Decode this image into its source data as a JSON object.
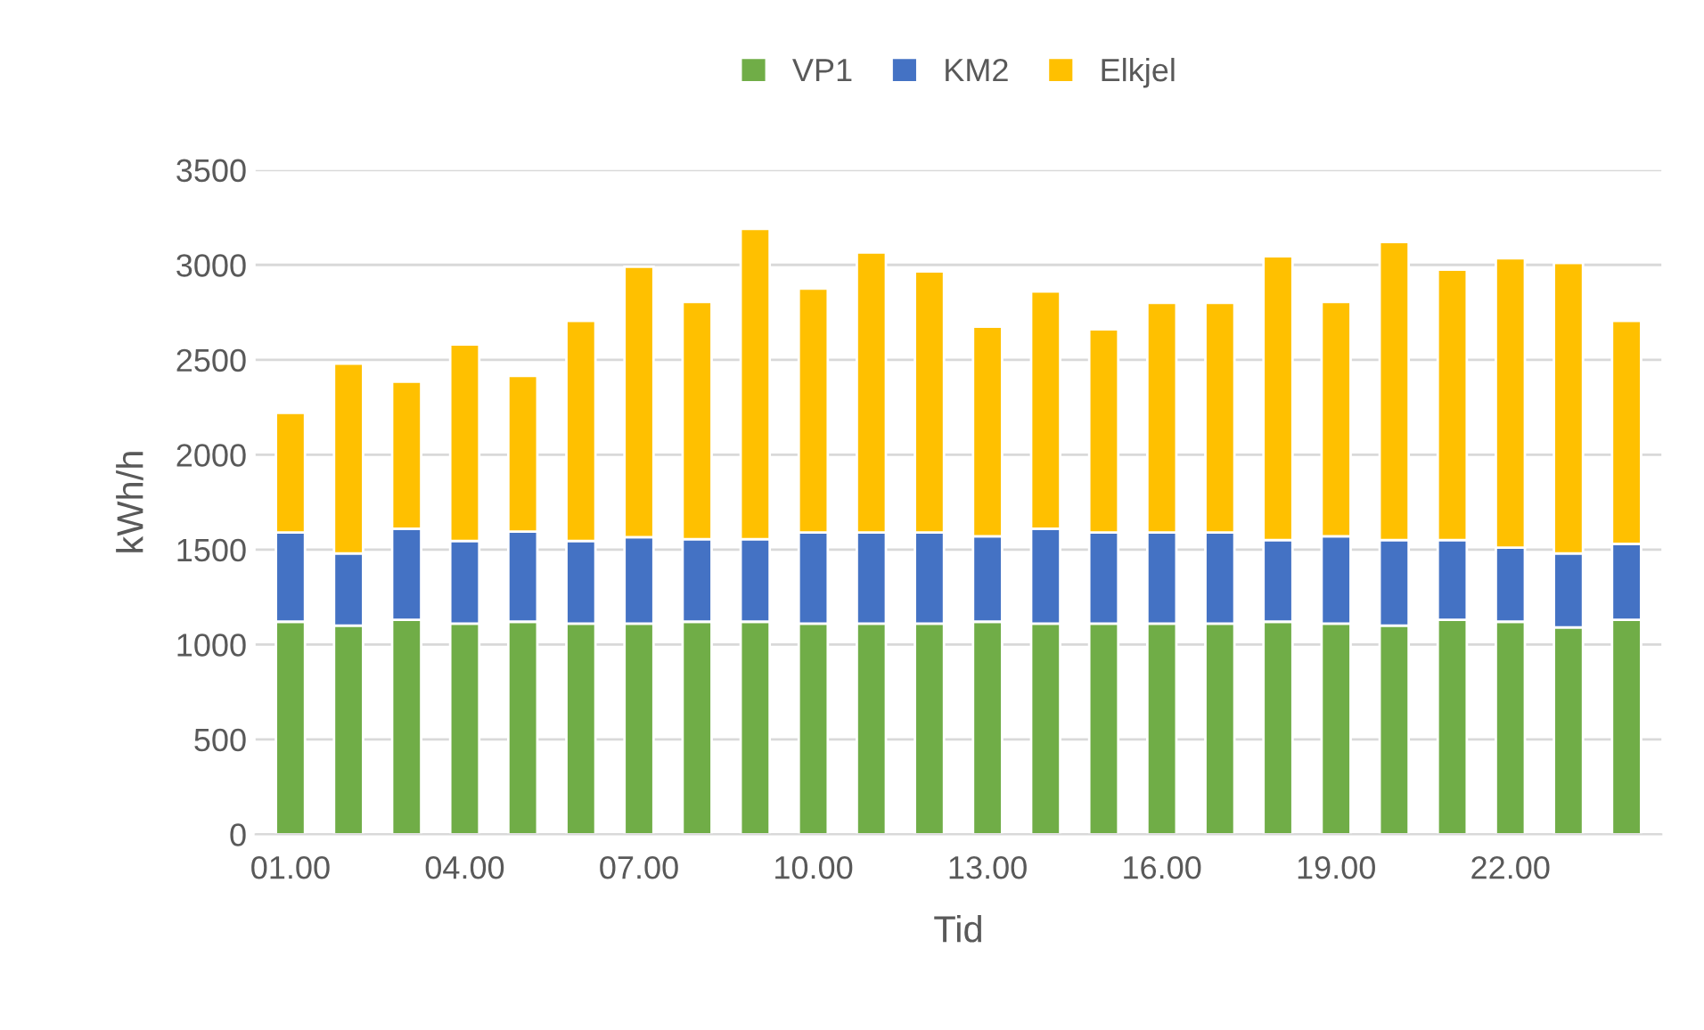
{
  "chart_data": {
    "type": "bar",
    "stacked": true,
    "xlabel": "Tid",
    "ylabel": "kWh/h",
    "categories": [
      "01.00",
      null,
      null,
      "04.00",
      null,
      null,
      "07.00",
      null,
      null,
      "10.00",
      null,
      null,
      "13.00",
      null,
      null,
      "16.00",
      null,
      null,
      "19.00",
      null,
      null,
      "22.00",
      null,
      null
    ],
    "series": [
      {
        "name": "VP1",
        "color": "#70ad47",
        "values": [
          1120,
          1100,
          1130,
          1110,
          1120,
          1110,
          1110,
          1120,
          1120,
          1110,
          1110,
          1110,
          1120,
          1110,
          1110,
          1110,
          1110,
          1120,
          1110,
          1100,
          1130,
          1120,
          1090,
          1130
        ]
      },
      {
        "name": "KM2",
        "color": "#4472c4",
        "values": [
          470,
          380,
          480,
          435,
          475,
          435,
          455,
          435,
          435,
          480,
          480,
          480,
          450,
          500,
          480,
          480,
          480,
          430,
          460,
          450,
          420,
          390,
          390,
          400
        ]
      },
      {
        "name": "Elkjel",
        "color": "#ffc000",
        "values": [
          630,
          1000,
          775,
          1035,
          820,
          1160,
          1425,
          1250,
          1635,
          1285,
          1475,
          1375,
          1105,
          1250,
          1070,
          1210,
          1210,
          1495,
          1235,
          1570,
          1425,
          1525,
          1530,
          1175
        ]
      }
    ],
    "ylim": [
      0,
      3500
    ],
    "yticks": [
      0,
      500,
      1000,
      1500,
      2000,
      2500,
      3000,
      3500
    ],
    "grid": "y",
    "legend": "top"
  }
}
